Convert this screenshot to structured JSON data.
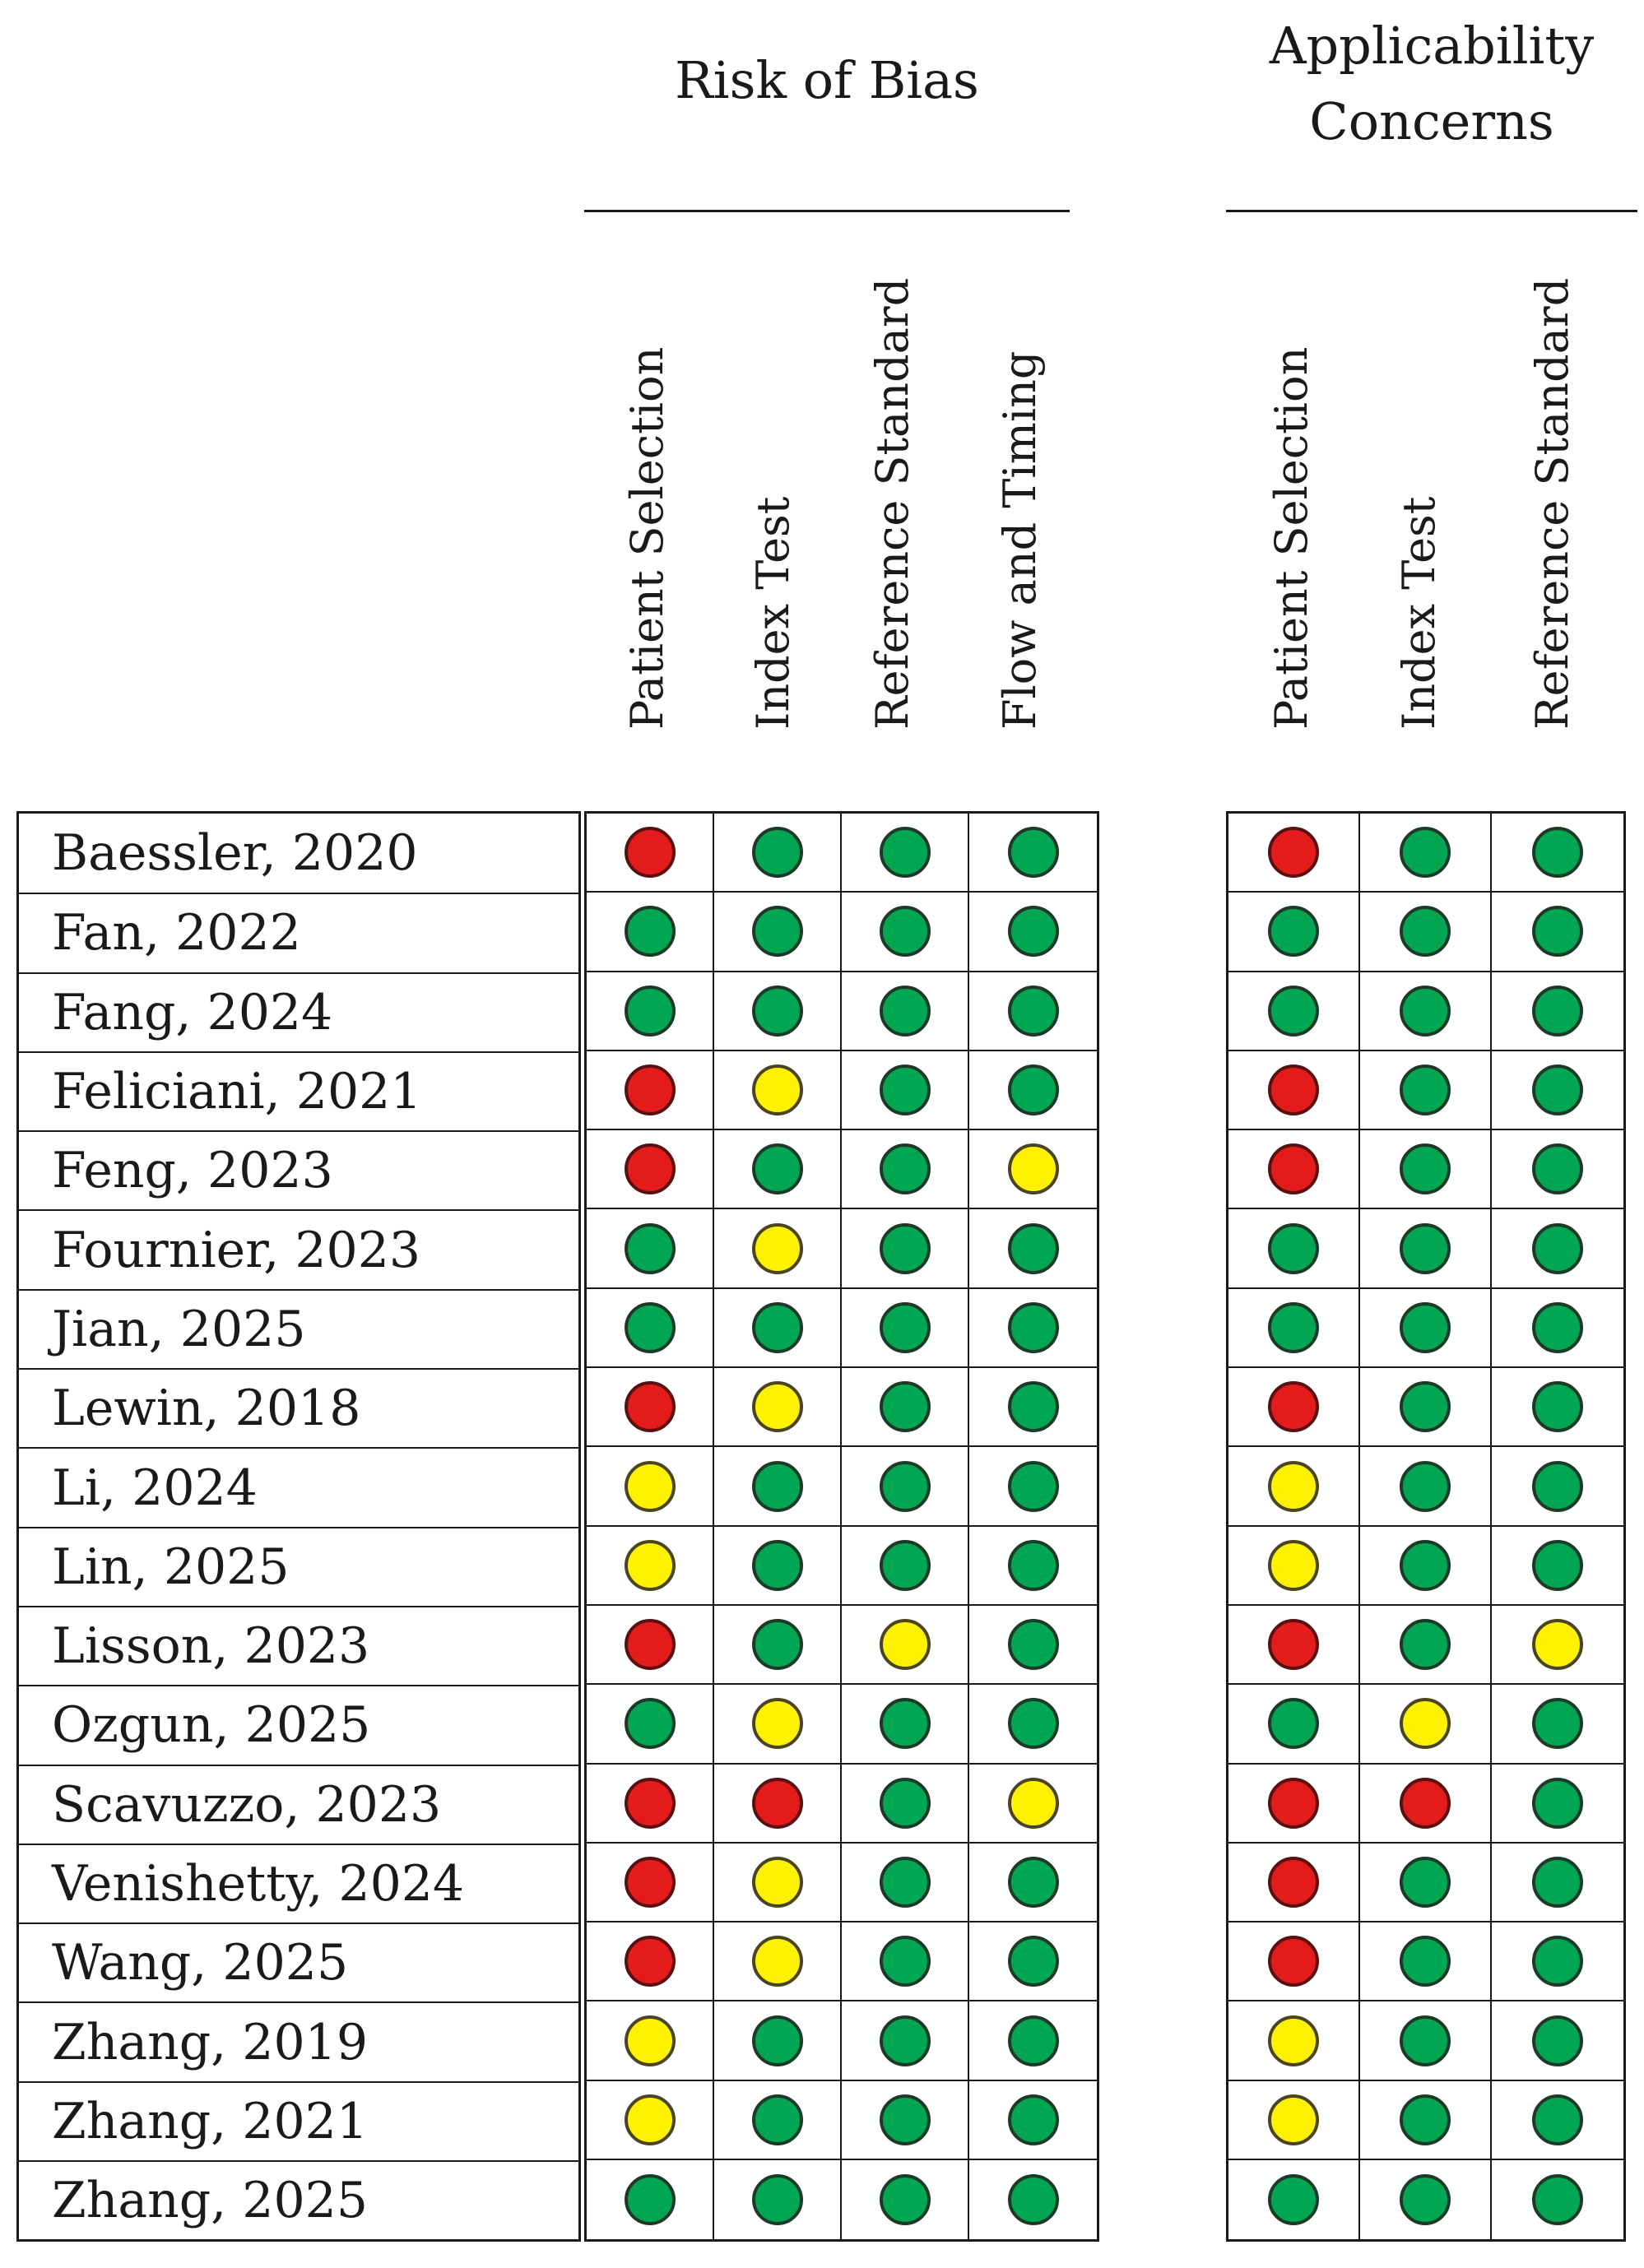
{
  "groups": {
    "risk_of_bias": "Risk of Bias",
    "applicability": "Applicability Concerns"
  },
  "columns": {
    "risk_of_bias": [
      "Patient Selection",
      "Index Test",
      "Reference Standard",
      "Flow and Timing"
    ],
    "applicability": [
      "Patient Selection",
      "Index Test",
      "Reference Standard"
    ]
  },
  "legend_colors": {
    "low": "#00a651",
    "high": "#e31b1b",
    "unclear": "#fff200"
  },
  "studies": [
    {
      "name": "Baessler, 2020",
      "rob": [
        "high",
        "low",
        "low",
        "low"
      ],
      "app": [
        "high",
        "low",
        "low"
      ]
    },
    {
      "name": "Fan, 2022",
      "rob": [
        "low",
        "low",
        "low",
        "low"
      ],
      "app": [
        "low",
        "low",
        "low"
      ]
    },
    {
      "name": "Fang, 2024",
      "rob": [
        "low",
        "low",
        "low",
        "low"
      ],
      "app": [
        "low",
        "low",
        "low"
      ]
    },
    {
      "name": "Feliciani, 2021",
      "rob": [
        "high",
        "unclear",
        "low",
        "low"
      ],
      "app": [
        "high",
        "low",
        "low"
      ]
    },
    {
      "name": "Feng, 2023",
      "rob": [
        "high",
        "low",
        "low",
        "unclear"
      ],
      "app": [
        "high",
        "low",
        "low"
      ]
    },
    {
      "name": "Fournier, 2023",
      "rob": [
        "low",
        "unclear",
        "low",
        "low"
      ],
      "app": [
        "low",
        "low",
        "low"
      ]
    },
    {
      "name": "Jian, 2025",
      "rob": [
        "low",
        "low",
        "low",
        "low"
      ],
      "app": [
        "low",
        "low",
        "low"
      ]
    },
    {
      "name": "Lewin, 2018",
      "rob": [
        "high",
        "unclear",
        "low",
        "low"
      ],
      "app": [
        "high",
        "low",
        "low"
      ]
    },
    {
      "name": "Li, 2024",
      "rob": [
        "unclear",
        "low",
        "low",
        "low"
      ],
      "app": [
        "unclear",
        "low",
        "low"
      ]
    },
    {
      "name": "Lin, 2025",
      "rob": [
        "unclear",
        "low",
        "low",
        "low"
      ],
      "app": [
        "unclear",
        "low",
        "low"
      ]
    },
    {
      "name": "Lisson, 2023",
      "rob": [
        "high",
        "low",
        "unclear",
        "low"
      ],
      "app": [
        "high",
        "low",
        "unclear"
      ]
    },
    {
      "name": "Ozgun, 2025",
      "rob": [
        "low",
        "unclear",
        "low",
        "low"
      ],
      "app": [
        "low",
        "unclear",
        "low"
      ]
    },
    {
      "name": "Scavuzzo, 2023",
      "rob": [
        "high",
        "high",
        "low",
        "unclear"
      ],
      "app": [
        "high",
        "high",
        "low"
      ]
    },
    {
      "name": "Venishetty, 2024",
      "rob": [
        "high",
        "unclear",
        "low",
        "low"
      ],
      "app": [
        "high",
        "low",
        "low"
      ]
    },
    {
      "name": "Wang, 2025",
      "rob": [
        "high",
        "unclear",
        "low",
        "low"
      ],
      "app": [
        "high",
        "low",
        "low"
      ]
    },
    {
      "name": "Zhang, 2019",
      "rob": [
        "unclear",
        "low",
        "low",
        "low"
      ],
      "app": [
        "unclear",
        "low",
        "low"
      ]
    },
    {
      "name": "Zhang, 2021",
      "rob": [
        "unclear",
        "low",
        "low",
        "low"
      ],
      "app": [
        "unclear",
        "low",
        "low"
      ]
    },
    {
      "name": "Zhang, 2025",
      "rob": [
        "low",
        "low",
        "low",
        "low"
      ],
      "app": [
        "low",
        "low",
        "low"
      ]
    }
  ]
}
